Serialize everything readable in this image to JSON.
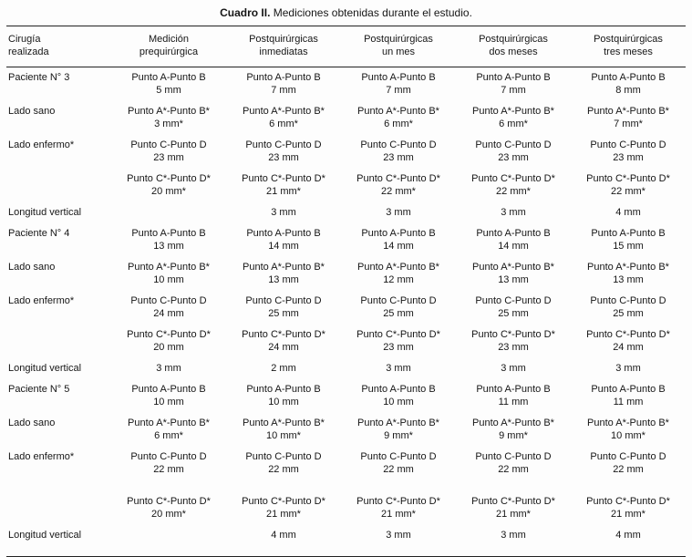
{
  "title": {
    "label": "Cuadro II.",
    "text": " Mediciones obtenidas durante el estudio."
  },
  "table": {
    "headers": [
      [
        "Cirugía",
        "realizada"
      ],
      [
        "Medición",
        "prequirúrgica"
      ],
      [
        "Postquirúrgicas",
        "inmediatas"
      ],
      [
        "Postquirúrgicas",
        "un mes"
      ],
      [
        "Postquirúrgicas",
        "dos meses"
      ],
      [
        "Postquirúrgicas",
        "tres meses"
      ]
    ],
    "rows": [
      {
        "label": "Paciente N° 3",
        "cells": [
          [
            "Punto A-Punto B",
            "5 mm"
          ],
          [
            "Punto A-Punto B",
            "7 mm"
          ],
          [
            "Punto A-Punto B",
            "7 mm"
          ],
          [
            "Punto A-Punto B",
            "7 mm"
          ],
          [
            "Punto A-Punto B",
            "8 mm"
          ]
        ]
      },
      {
        "label": "Lado sano",
        "cells": [
          [
            "Punto A*-Punto B*",
            "3 mm*"
          ],
          [
            "Punto A*-Punto B*",
            "6 mm*"
          ],
          [
            "Punto A*-Punto B*",
            "6 mm*"
          ],
          [
            "Punto A*-Punto B*",
            "6 mm*"
          ],
          [
            "Punto A*-Punto B*",
            "7 mm*"
          ]
        ]
      },
      {
        "label": "Lado enfermo*",
        "cells": [
          [
            "Punto C-Punto D",
            "23 mm"
          ],
          [
            "Punto C-Punto D",
            "23 mm"
          ],
          [
            "Punto C-Punto D",
            "23 mm"
          ],
          [
            "Punto C-Punto D",
            "23 mm"
          ],
          [
            "Punto C-Punto D",
            "23 mm"
          ]
        ]
      },
      {
        "label": "",
        "cells": [
          [
            "Punto C*-Punto D*",
            "20 mm*"
          ],
          [
            "Punto C*-Punto D*",
            "21 mm*"
          ],
          [
            "Punto C*-Punto D*",
            "22 mm*"
          ],
          [
            "Punto C*-Punto D*",
            "22 mm*"
          ],
          [
            "Punto C*-Punto D*",
            "22 mm*"
          ]
        ]
      },
      {
        "label": "Longitud vertical",
        "cells": [
          [],
          [
            "3 mm"
          ],
          [
            "3 mm"
          ],
          [
            "3 mm"
          ],
          [
            "4 mm"
          ]
        ]
      },
      {
        "label": "Paciente N° 4",
        "cells": [
          [
            "Punto A-Punto B",
            "13 mm"
          ],
          [
            "Punto A-Punto B",
            "14 mm"
          ],
          [
            "Punto A-Punto B",
            "14 mm"
          ],
          [
            "Punto A-Punto B",
            "14 mm"
          ],
          [
            "Punto A-Punto B",
            "15 mm"
          ]
        ]
      },
      {
        "label": "Lado sano",
        "cells": [
          [
            "Punto A*-Punto B*",
            "10 mm"
          ],
          [
            "Punto A*-Punto B*",
            "13 mm"
          ],
          [
            "Punto A*-Punto B*",
            "12 mm"
          ],
          [
            "Punto A*-Punto B*",
            "13 mm"
          ],
          [
            "Punto A*-Punto B*",
            "13 mm"
          ]
        ]
      },
      {
        "label": "Lado enfermo*",
        "cells": [
          [
            "Punto C-Punto D",
            "24 mm"
          ],
          [
            "Punto C-Punto D",
            "25 mm"
          ],
          [
            "Punto C-Punto D",
            "25 mm"
          ],
          [
            "Punto C-Punto D",
            "25 mm"
          ],
          [
            "Punto C-Punto D",
            "25 mm"
          ]
        ]
      },
      {
        "label": "",
        "cells": [
          [
            "Punto C*-Punto D*",
            "20 mm"
          ],
          [
            "Punto C*-Punto D*",
            "24 mm"
          ],
          [
            "Punto C*-Punto D*",
            "23 mm"
          ],
          [
            "Punto C*-Punto D*",
            "23 mm"
          ],
          [
            "Punto C*-Punto D*",
            "24 mm"
          ]
        ]
      },
      {
        "label": "Longitud vertical",
        "cells": [
          [
            "3 mm"
          ],
          [
            "2 mm"
          ],
          [
            "3 mm"
          ],
          [
            "3 mm"
          ],
          [
            "3 mm"
          ]
        ]
      },
      {
        "label": "Paciente N° 5",
        "cells": [
          [
            "Punto A-Punto B",
            "10 mm"
          ],
          [
            "Punto A-Punto B",
            "10 mm"
          ],
          [
            "Punto A-Punto B",
            "10 mm"
          ],
          [
            "Punto A-Punto B",
            "11 mm"
          ],
          [
            "Punto A-Punto B",
            "11 mm"
          ]
        ]
      },
      {
        "label": "Lado sano",
        "cells": [
          [
            "Punto A*-Punto B*",
            "6 mm*"
          ],
          [
            "Punto A*-Punto B*",
            "10 mm*"
          ],
          [
            "Punto A*-Punto B*",
            "9 mm*"
          ],
          [
            "Punto A*-Punto B*",
            "9 mm*"
          ],
          [
            "Punto A*-Punto B*",
            "10 mm*"
          ]
        ]
      },
      {
        "label": "Lado enfermo*",
        "cells": [
          [
            "Punto C-Punto D",
            "22 mm"
          ],
          [
            "Punto C-Punto D",
            "22 mm"
          ],
          [
            "Punto C-Punto D",
            "22 mm"
          ],
          [
            "Punto C-Punto D",
            "22 mm"
          ],
          [
            "Punto C-Punto D",
            "22 mm"
          ]
        ]
      },
      {
        "label": "",
        "cells": [
          [
            "Punto C*-Punto D*",
            "20 mm*"
          ],
          [
            "Punto C*-Punto D*",
            "21 mm*"
          ],
          [
            "Punto C*-Punto D*",
            "21 mm*"
          ],
          [
            "Punto C*-Punto D*",
            "21 mm*"
          ],
          [
            "Punto C*-Punto D*",
            "21 mm*"
          ]
        ]
      },
      {
        "label": "Longitud vertical",
        "cells": [
          [],
          [
            "4 mm"
          ],
          [
            "3 mm"
          ],
          [
            "3 mm"
          ],
          [
            "4 mm"
          ]
        ]
      }
    ]
  }
}
